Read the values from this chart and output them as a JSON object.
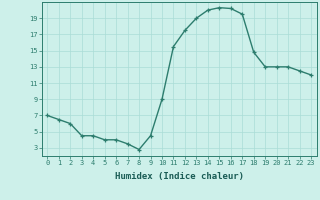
{
  "xlabel": "Humidex (Indice chaleur)",
  "ylabel": "",
  "x": [
    0,
    1,
    2,
    3,
    4,
    5,
    6,
    7,
    8,
    9,
    10,
    11,
    12,
    13,
    14,
    15,
    16,
    17,
    18,
    19,
    20,
    21,
    22,
    23
  ],
  "y": [
    7,
    6.5,
    6,
    4.5,
    4.5,
    4,
    4,
    3.5,
    2.8,
    4.5,
    9,
    15.5,
    17.5,
    19,
    20,
    20.3,
    20.2,
    19.5,
    14.8,
    13,
    13,
    13,
    12.5,
    12
  ],
  "line_color": "#2d7d6e",
  "marker": "+",
  "marker_color": "#2d7d6e",
  "bg_color": "#cdf0ea",
  "grid_color": "#aaddd6",
  "axis_color": "#2d7d6e",
  "xlabel_color": "#1a5c55",
  "xlim_min": -0.5,
  "xlim_max": 23.5,
  "ylim_min": 2,
  "ylim_max": 21,
  "yticks": [
    3,
    5,
    7,
    9,
    11,
    13,
    15,
    17,
    19
  ],
  "xticks": [
    0,
    1,
    2,
    3,
    4,
    5,
    6,
    7,
    8,
    9,
    10,
    11,
    12,
    13,
    14,
    15,
    16,
    17,
    18,
    19,
    20,
    21,
    22,
    23
  ],
  "tick_fontsize": 5,
  "xlabel_fontsize": 6.5,
  "line_width": 1.0,
  "marker_size": 3.5
}
